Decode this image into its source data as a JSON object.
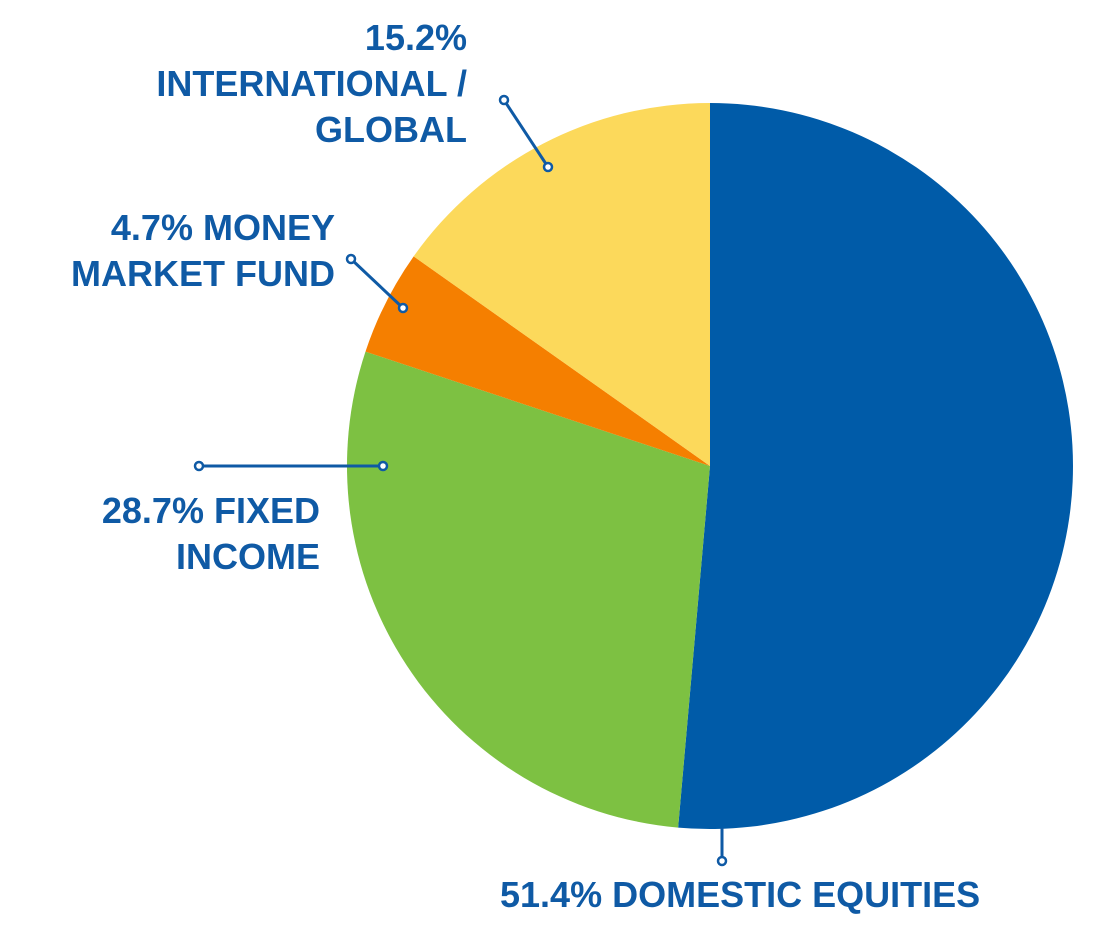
{
  "chart_data": {
    "type": "pie",
    "categories": [
      "DOMESTIC EQUITIES",
      "FIXED INCOME",
      "MONEY MARKET FUND",
      "INTERNATIONAL / GLOBAL"
    ],
    "values": [
      51.4,
      28.7,
      4.7,
      15.2
    ],
    "value_labels": [
      "51.4%",
      "28.7%",
      "4.7%",
      "15.2%"
    ],
    "colors": [
      "#005ba8",
      "#7dc142",
      "#f57f00",
      "#fcd95b"
    ]
  }
}
